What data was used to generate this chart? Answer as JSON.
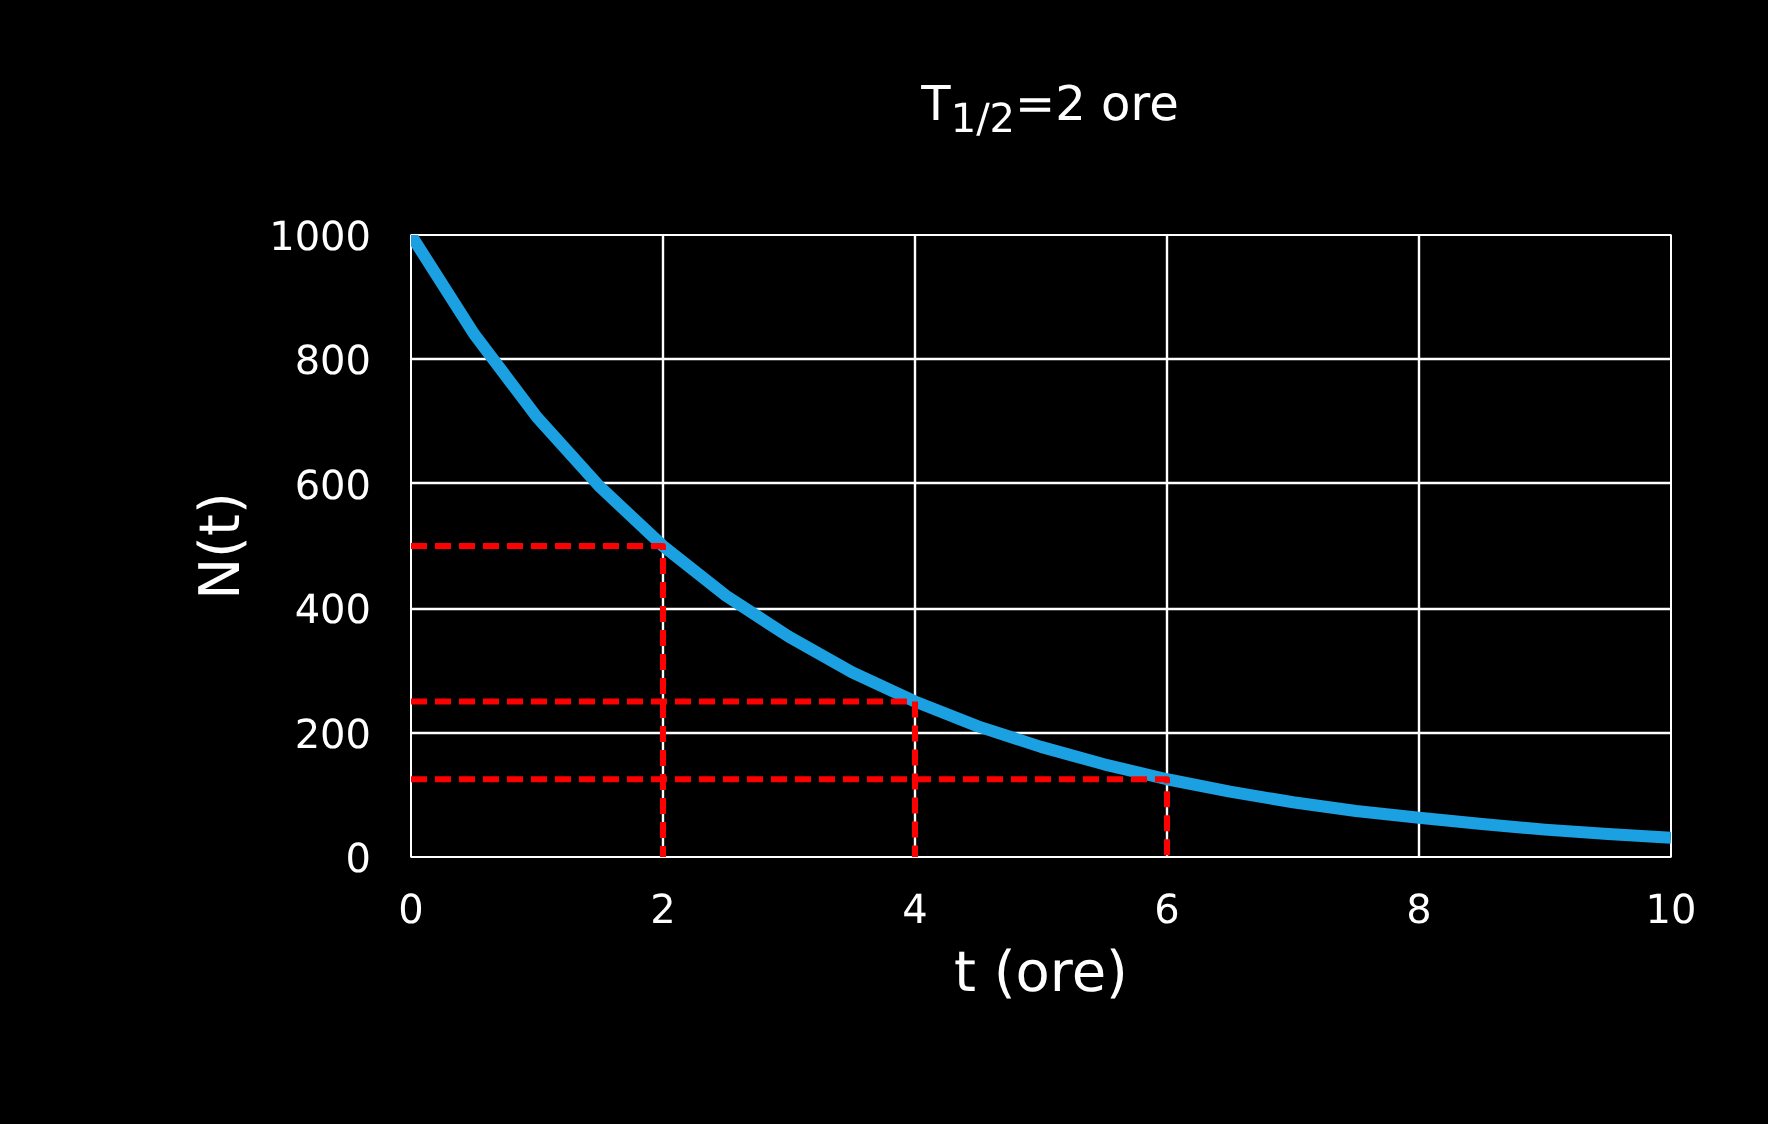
{
  "chart_data": {
    "type": "line",
    "title": "T$_{1/2}$=2 ore",
    "xlabel": "t (ore)",
    "ylabel": "N(t)",
    "xlim": [
      0,
      10
    ],
    "ylim": [
      0,
      1000
    ],
    "xticks": [
      0,
      2,
      4,
      6,
      8,
      10
    ],
    "yticks": [
      0,
      200,
      400,
      600,
      800,
      1000
    ],
    "grid": true,
    "series": [
      {
        "color": "#1ba1e2",
        "x": [
          0,
          0.5,
          1,
          1.5,
          2,
          2.5,
          3,
          3.5,
          4,
          4.5,
          5,
          5.5,
          6,
          6.5,
          7,
          7.5,
          8,
          8.5,
          9,
          9.5,
          10
        ],
        "values": [
          1000,
          841,
          707,
          595,
          500,
          420,
          354,
          297,
          250,
          210,
          177,
          149,
          125,
          105,
          88,
          74,
          63,
          53,
          44,
          37,
          31
        ]
      },
      {
        "color": "#ff0000",
        "line_style": "dashed",
        "x": [
          0,
          2,
          2
        ],
        "values": [
          500,
          500,
          0
        ]
      },
      {
        "color": "#ff0000",
        "line_style": "dashed",
        "x": [
          0,
          4,
          4
        ],
        "values": [
          250,
          250,
          0
        ]
      },
      {
        "color": "#ff0000",
        "line_style": "dashed",
        "x": [
          0,
          6,
          6
        ],
        "values": [
          125,
          125,
          0
        ]
      }
    ]
  }
}
